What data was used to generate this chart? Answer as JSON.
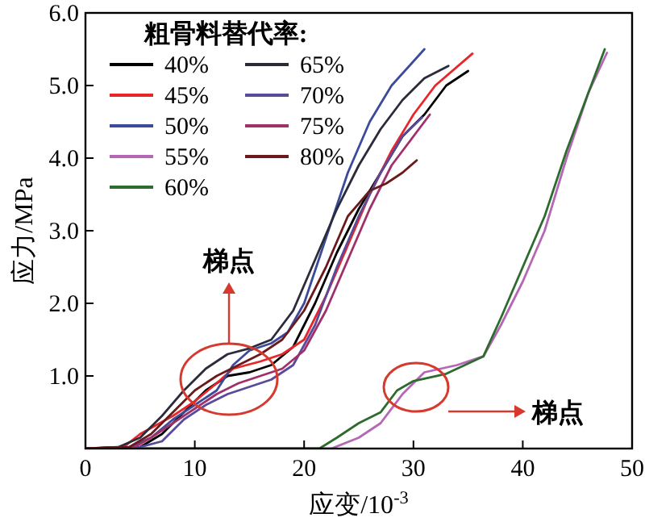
{
  "chart_data": {
    "type": "line",
    "xlabel": "应变/10$^{-3}$",
    "ylabel": "应力/MPa",
    "legend_title": "粗骨料替代率:",
    "legend": "top left",
    "grid": false,
    "marker": "none",
    "line_style": "solid",
    "xlim": [
      0,
      50
    ],
    "xticks": [
      0,
      10,
      20,
      30,
      40,
      50
    ],
    "ylim": [
      0,
      6
    ],
    "yticks": [
      {
        "value": 0,
        "label": null
      },
      {
        "value": 1,
        "label": "1.0"
      },
      {
        "value": 2,
        "label": "2.0"
      },
      {
        "value": 3,
        "label": "3.0"
      },
      {
        "value": 4,
        "label": "4.0"
      },
      {
        "value": 5,
        "label": "5.0"
      },
      {
        "value": 6,
        "label": "6.0"
      }
    ],
    "series": [
      {
        "name": "40%",
        "color": "#000000",
        "x": [
          0,
          5,
          7,
          9,
          11,
          13,
          15,
          17,
          19,
          21,
          23,
          25,
          27,
          29,
          31,
          33,
          35
        ],
        "values": [
          0,
          0.02,
          0.2,
          0.5,
          0.8,
          1.0,
          1.05,
          1.15,
          1.4,
          2.0,
          2.7,
          3.3,
          3.8,
          4.3,
          4.6,
          5.0,
          5.2
        ]
      },
      {
        "name": "45%",
        "color": "#e8262a",
        "x": [
          0,
          3.5,
          5,
          8,
          10,
          12,
          13.5,
          16,
          18,
          20,
          22,
          24,
          26,
          28,
          30,
          32,
          35.4
        ],
        "values": [
          0,
          0.02,
          0.2,
          0.45,
          0.65,
          0.9,
          1.1,
          1.2,
          1.3,
          1.5,
          2.1,
          2.8,
          3.5,
          4.1,
          4.6,
          5.0,
          5.44
        ]
      },
      {
        "name": "50%",
        "color": "#3b4a9a",
        "x": [
          0,
          4,
          6,
          8,
          10,
          12,
          13.5,
          15,
          17,
          18.5,
          20,
          22,
          24,
          26,
          28,
          31
        ],
        "values": [
          0,
          0.02,
          0.15,
          0.4,
          0.6,
          0.8,
          1.15,
          1.35,
          1.45,
          1.6,
          2.0,
          2.9,
          3.8,
          4.5,
          5.0,
          5.5
        ]
      },
      {
        "name": "55%",
        "color": "#b567b5",
        "x": [
          0,
          22.5,
          25,
          27,
          29,
          31,
          34,
          36.4,
          38,
          40,
          42,
          44,
          46,
          47.7
        ],
        "values": [
          0,
          0,
          0.15,
          0.35,
          0.75,
          1.05,
          1.15,
          1.27,
          1.7,
          2.3,
          3.0,
          4.0,
          4.9,
          5.45
        ]
      },
      {
        "name": "60%",
        "color": "#2e6b2e",
        "x": [
          0,
          21.4,
          23,
          25,
          27,
          28.5,
          30,
          33,
          36.4,
          38,
          40,
          42,
          44,
          46,
          47.5
        ],
        "values": [
          0,
          0,
          0.15,
          0.35,
          0.5,
          0.8,
          0.93,
          1.03,
          1.27,
          1.8,
          2.5,
          3.2,
          4.1,
          4.9,
          5.5
        ]
      },
      {
        "name": "65%",
        "color": "#2b2b3b",
        "x": [
          0,
          3,
          5,
          7,
          9,
          11,
          13,
          15,
          17,
          19,
          21,
          23,
          25,
          27,
          29,
          31,
          33.2
        ],
        "values": [
          0,
          0.02,
          0.15,
          0.45,
          0.8,
          1.1,
          1.3,
          1.38,
          1.5,
          1.9,
          2.6,
          3.3,
          3.9,
          4.4,
          4.8,
          5.1,
          5.27
        ]
      },
      {
        "name": "70%",
        "color": "#5a4a9a",
        "x": [
          0,
          5,
          7,
          9,
          11,
          13,
          15,
          17,
          19,
          21,
          23,
          25,
          27,
          29,
          30.8
        ],
        "values": [
          0,
          0.02,
          0.1,
          0.4,
          0.6,
          0.75,
          0.85,
          0.95,
          1.15,
          1.7,
          2.5,
          3.2,
          3.8,
          4.3,
          4.56
        ]
      },
      {
        "name": "75%",
        "color": "#a0306a",
        "x": [
          0,
          4.5,
          6,
          8,
          10,
          12,
          14,
          16,
          18,
          20,
          22,
          24,
          26,
          28,
          30,
          31.5
        ],
        "values": [
          0,
          0.02,
          0.15,
          0.35,
          0.55,
          0.75,
          0.9,
          1.0,
          1.1,
          1.35,
          1.9,
          2.6,
          3.3,
          3.9,
          4.3,
          4.6
        ]
      },
      {
        "name": "80%",
        "color": "#6a1a1a",
        "x": [
          0,
          4,
          6,
          8,
          10,
          12,
          14,
          16,
          18,
          20,
          22,
          24,
          26,
          27.5,
          29,
          30.3
        ],
        "values": [
          0,
          0.02,
          0.2,
          0.5,
          0.8,
          1.0,
          1.15,
          1.3,
          1.5,
          1.9,
          2.5,
          3.2,
          3.55,
          3.65,
          3.8,
          3.97
        ]
      }
    ],
    "annotations": [
      "梯点",
      "梯点"
    ]
  }
}
